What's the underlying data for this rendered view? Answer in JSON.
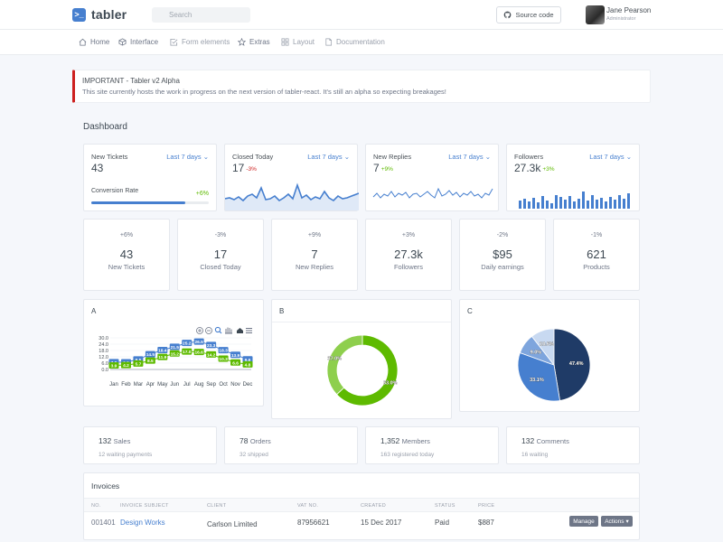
{
  "header": {
    "brand": "tabler",
    "search_placeholder": "Search",
    "source_button": "Source code",
    "user": {
      "name": "Jane Pearson",
      "role": "Administrator"
    }
  },
  "nav": [
    {
      "label": "Home",
      "icon": "home-icon"
    },
    {
      "label": "Interface",
      "icon": "box-icon"
    },
    {
      "label": "Form elements",
      "icon": "check-square-icon"
    },
    {
      "label": "Extras",
      "icon": "star-icon"
    },
    {
      "label": "Layout",
      "icon": "grid-icon"
    },
    {
      "label": "Documentation",
      "icon": "file-icon"
    }
  ],
  "alert": {
    "title": "IMPORTANT - Tabler v2 Alpha",
    "text": "This site currently hosts the work in progress on the next version of tabler-react. It's still an alpha so expecting breakages!"
  },
  "page_title": "Dashboard",
  "kpis": [
    {
      "label": "New Tickets",
      "period": "Last 7 days",
      "value": "43",
      "change": "",
      "progress_label": "Conversion Rate",
      "progress_change": "+6%",
      "progress_fraction": 0.8
    },
    {
      "label": "Closed Today",
      "period": "Last 7 days",
      "value": "17",
      "change": "-3%"
    },
    {
      "label": "New Replies",
      "period": "Last 7 days",
      "value": "7",
      "change": "+9%"
    },
    {
      "label": "Followers",
      "period": "Last 7 days",
      "value": "27.3k",
      "change": "+3%"
    }
  ],
  "stats": [
    {
      "change": "+6%",
      "value": "43",
      "label": "New Tickets"
    },
    {
      "change": "-3%",
      "value": "17",
      "label": "Closed Today"
    },
    {
      "change": "+9%",
      "value": "7",
      "label": "New Replies"
    },
    {
      "change": "+3%",
      "value": "27.3k",
      "label": "Followers"
    },
    {
      "change": "-2%",
      "value": "$95",
      "label": "Daily earnings"
    },
    {
      "change": "-1%",
      "value": "621",
      "label": "Products"
    }
  ],
  "charts": {
    "a_title": "A",
    "b_title": "B",
    "c_title": "C"
  },
  "chart_data": [
    {
      "type": "line",
      "title": "A",
      "categories": [
        "Jan",
        "Feb",
        "Mar",
        "Apr",
        "May",
        "Jun",
        "Jul",
        "Aug",
        "Sep",
        "Oct",
        "Nov",
        "Dec"
      ],
      "series": [
        {
          "color": "#467fcf",
          "values": [
            7.0,
            6.9,
            9.5,
            14.5,
            18.4,
            21.5,
            25.2,
            26.5,
            23.3,
            18.3,
            13.9,
            9.6
          ]
        },
        {
          "color": "#5eba00",
          "values": [
            3.9,
            4.2,
            5.7,
            8.5,
            11.9,
            15.2,
            17.0,
            16.6,
            14.2,
            10.3,
            6.6,
            4.8
          ]
        }
      ],
      "yticks": [
        "30.0",
        "24.0",
        "18.0",
        "12.0",
        "6.0",
        "0.0"
      ],
      "ylim": [
        0,
        30
      ]
    },
    {
      "type": "pie",
      "title": "B",
      "donut": true,
      "series": [
        {
          "value": 63.0,
          "label": "63.0%",
          "color": "#5eba00"
        },
        {
          "value": 37.0,
          "label": "37.0%",
          "color": "#8ecf4d"
        }
      ]
    },
    {
      "type": "pie",
      "title": "C",
      "series": [
        {
          "value": 47.4,
          "label": "47.4%",
          "color": "#1f3b67"
        },
        {
          "value": 33.1,
          "label": "33.1%",
          "color": "#467fcf"
        },
        {
          "value": 9.0,
          "label": "9.0%",
          "color": "#7ea5dd"
        },
        {
          "value": 10.5,
          "label": "10.5%",
          "color": "#c8d9f1"
        }
      ]
    }
  ],
  "mini_stats": [
    {
      "value": "132",
      "label": "Sales",
      "sub": "12 waiting payments"
    },
    {
      "value": "78",
      "label": "Orders",
      "sub": "32 shipped"
    },
    {
      "value": "1,352",
      "label": "Members",
      "sub": "163 registered today"
    },
    {
      "value": "132",
      "label": "Comments",
      "sub": "16 waiting"
    }
  ],
  "invoices": {
    "title": "Invoices",
    "columns": [
      "NO.",
      "INVOICE SUBJECT",
      "CLIENT",
      "VAT NO.",
      "CREATED",
      "STATUS",
      "PRICE"
    ],
    "rows": [
      {
        "no": "001401",
        "subject": "Design Works",
        "client": "Carlson Limited",
        "vat": "87956621",
        "created": "15 Dec 2017",
        "status": "Paid",
        "price": "$887"
      }
    ],
    "manage_label": "Manage",
    "actions_label": "Actions"
  },
  "colors": {
    "primary": "#467fcf",
    "success": "#5eba00",
    "danger": "#cd201f",
    "alert_border": "#cd201f"
  }
}
